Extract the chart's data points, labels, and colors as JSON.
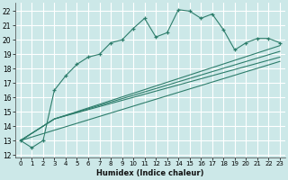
{
  "xlabel": "Humidex (Indice chaleur)",
  "bg_color": "#cce8e8",
  "grid_color": "#ffffff",
  "line_color": "#2d7d6b",
  "xlim": [
    -0.5,
    23.5
  ],
  "ylim": [
    11.8,
    22.6
  ],
  "xticks": [
    0,
    1,
    2,
    3,
    4,
    5,
    6,
    7,
    8,
    9,
    10,
    11,
    12,
    13,
    14,
    15,
    16,
    17,
    18,
    19,
    20,
    21,
    22,
    23
  ],
  "yticks": [
    12,
    13,
    14,
    15,
    16,
    17,
    18,
    19,
    20,
    21,
    22
  ],
  "main_x": [
    0,
    1,
    2,
    3,
    4,
    5,
    6,
    7,
    8,
    9,
    10,
    11,
    12,
    13,
    14,
    15,
    16,
    17,
    18,
    19,
    20,
    21,
    22,
    23
  ],
  "main_y": [
    13.0,
    12.5,
    13.0,
    16.5,
    17.5,
    18.3,
    18.8,
    19.0,
    19.8,
    20.0,
    20.8,
    21.5,
    20.2,
    20.5,
    22.1,
    22.0,
    21.5,
    21.8,
    20.7,
    19.3,
    19.8,
    20.1,
    20.1,
    19.8
  ],
  "straight_lines": [
    {
      "x": [
        0,
        23
      ],
      "y": [
        13.0,
        18.5
      ]
    },
    {
      "x": [
        0,
        3,
        23
      ],
      "y": [
        13.0,
        14.5,
        18.8
      ]
    },
    {
      "x": [
        0,
        3,
        23
      ],
      "y": [
        13.0,
        14.5,
        19.2
      ]
    },
    {
      "x": [
        0,
        3,
        23
      ],
      "y": [
        13.0,
        14.5,
        19.6
      ]
    }
  ]
}
